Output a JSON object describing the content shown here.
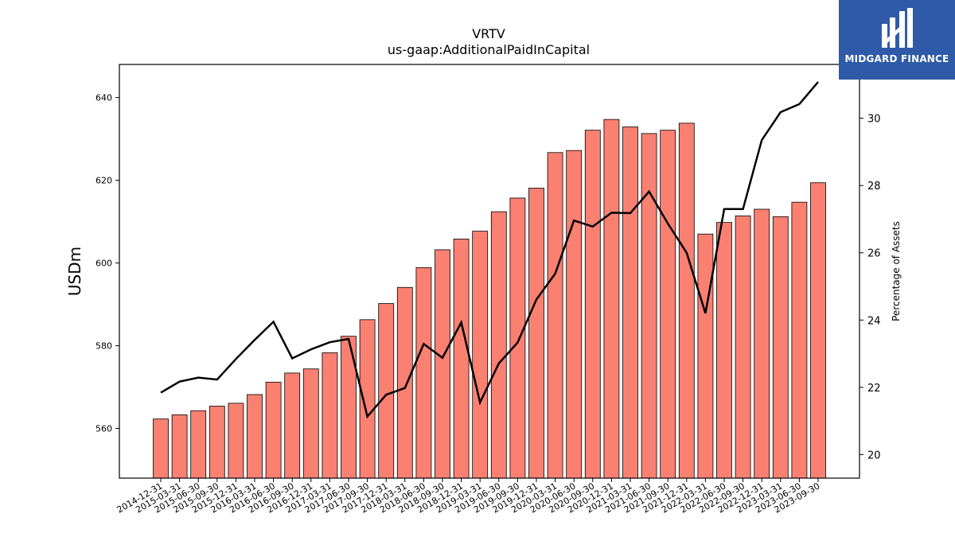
{
  "logo": {
    "brand": "MIDGARD FINANCE",
    "icon": "midgard-logo-icon"
  },
  "colors": {
    "bar": "#fa8072",
    "bar_edge": "#000000",
    "line": "#000000",
    "logo_bg": "#2f5aa8"
  },
  "chart_data": {
    "type": "bar",
    "title": "VRTV",
    "subtitle": "us-gaap:AdditionalPaidInCapital",
    "ylabel": "USDm",
    "y2label": "Percentage of Assets",
    "ylim": [
      548,
      648
    ],
    "y2lim": [
      19.3,
      31.6
    ],
    "yticks": [
      560,
      580,
      600,
      620,
      640
    ],
    "y2ticks": [
      20,
      22,
      24,
      26,
      28,
      30
    ],
    "categories": [
      "2014-12-31",
      "2015-03-31",
      "2015-06-30",
      "2015-09-30",
      "2015-12-31",
      "2016-03-31",
      "2016-06-30",
      "2016-09-30",
      "2016-12-31",
      "2017-03-31",
      "2017-06-30",
      "2017-09-30",
      "2017-12-31",
      "2018-03-31",
      "2018-06-30",
      "2018-09-30",
      "2018-12-31",
      "2019-03-31",
      "2019-06-30",
      "2019-09-30",
      "2019-12-31",
      "2020-03-31",
      "2020-06-30",
      "2020-09-30",
      "2020-12-31",
      "2021-03-31",
      "2021-06-30",
      "2021-09-30",
      "2021-12-31",
      "2022-03-31",
      "2022-06-30",
      "2022-09-30",
      "2022-12-31",
      "2023-03-31",
      "2023-06-30",
      "2023-09-30"
    ],
    "series": [
      {
        "type": "bar",
        "axis": "left",
        "values": [
          562.3,
          563.3,
          564.3,
          565.4,
          566.1,
          568.2,
          571.2,
          573.4,
          574.4,
          578.3,
          582.3,
          586.3,
          590.2,
          594.1,
          598.9,
          603.2,
          605.8,
          607.7,
          612.4,
          615.7,
          618.1,
          626.7,
          627.2,
          632.1,
          634.7,
          632.9,
          631.3,
          632.1,
          633.8,
          607.0,
          609.8,
          611.4,
          613.0,
          611.2,
          614.7,
          619.4
        ]
      },
      {
        "type": "line",
        "axis": "right",
        "values": [
          21.84,
          22.17,
          22.29,
          22.23,
          22.84,
          23.41,
          23.95,
          22.86,
          23.13,
          23.34,
          23.44,
          21.13,
          21.78,
          21.98,
          23.29,
          22.88,
          23.93,
          21.55,
          22.71,
          23.33,
          24.61,
          25.38,
          26.96,
          26.78,
          27.19,
          27.18,
          27.82,
          26.87,
          26.0,
          24.2,
          27.3,
          27.3,
          29.35,
          30.18,
          30.42,
          31.08
        ]
      }
    ],
    "grid": false
  }
}
